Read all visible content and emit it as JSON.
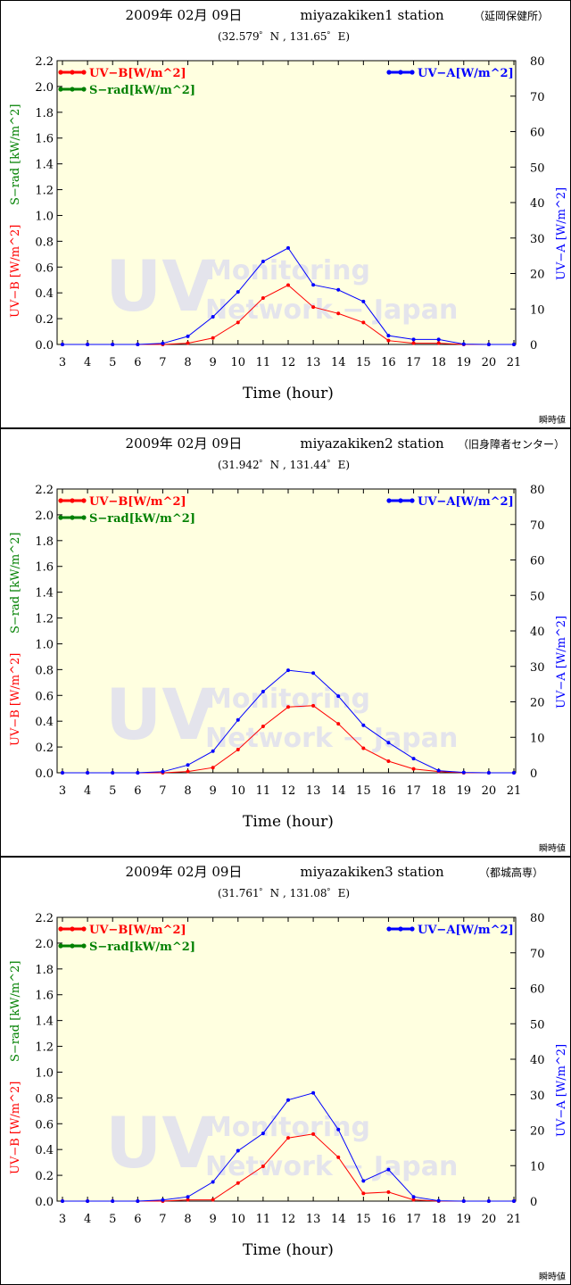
{
  "colors": {
    "uvb": "#ff0000",
    "srad": "#008000",
    "uva": "#0000ff",
    "plot_bg": "#ffffe0"
  },
  "common": {
    "date": "2009年 02月 09日",
    "xlabel": "Time (hour)",
    "ylabel_left_uvb": "UV−B [W/m^2]",
    "ylabel_left_srad": "S−rad [kW/m^2]",
    "ylabel_right": "UV−A [W/m^2]",
    "legend_uvb": "UV−B[W/m^2]",
    "legend_srad": "S−rad[kW/m^2]",
    "legend_uva": "UV−A[W/m^2]",
    "watermark_big": "UV",
    "watermark_line1": "Monitoring",
    "watermark_line2": "Network − Japan",
    "footnote": "瞬時値"
  },
  "chart_data": [
    {
      "type": "line",
      "station": "miyazakiken1 station",
      "place": "（延岡保健所）",
      "coords": "(32.579゜N , 131.65゜E)",
      "x": [
        3,
        4,
        5,
        6,
        7,
        8,
        9,
        10,
        11,
        12,
        13,
        14,
        15,
        16,
        17,
        18,
        19,
        20,
        21
      ],
      "xlim": [
        3,
        21
      ],
      "ylim_left": [
        0,
        2.2
      ],
      "ylim_right": [
        0,
        80
      ],
      "yticks_left": [
        "0.0",
        "0.2",
        "0.4",
        "0.6",
        "0.8",
        "1.0",
        "1.2",
        "1.4",
        "1.6",
        "1.8",
        "2.0",
        "2.2"
      ],
      "yticks_right": [
        "0",
        "10",
        "20",
        "30",
        "40",
        "50",
        "60",
        "70",
        "80"
      ],
      "series": [
        {
          "name": "UV−B[W/m^2]",
          "axis": "left",
          "values": [
            0,
            0,
            0,
            0,
            0,
            0.01,
            0.05,
            0.17,
            0.36,
            0.46,
            0.29,
            0.24,
            0.17,
            0.03,
            0.01,
            0.01,
            0,
            0,
            0
          ]
        },
        {
          "name": "UV−A[W/m^2]",
          "axis": "right",
          "values": [
            0,
            0,
            0,
            0,
            0.3,
            2.3,
            7.8,
            14.8,
            23.4,
            27.2,
            16.8,
            15.4,
            12.1,
            2.5,
            1.4,
            1.4,
            0.1,
            0,
            0
          ]
        }
      ]
    },
    {
      "type": "line",
      "station": "miyazakiken2 station",
      "place": "（旧身障者センター）",
      "coords": "(31.942゜N , 131.44゜E)",
      "x": [
        3,
        4,
        5,
        6,
        7,
        8,
        9,
        10,
        11,
        12,
        13,
        14,
        15,
        16,
        17,
        18,
        19,
        20,
        21
      ],
      "xlim": [
        3,
        21
      ],
      "ylim_left": [
        0,
        2.2
      ],
      "ylim_right": [
        0,
        80
      ],
      "yticks_left": [
        "0.0",
        "0.2",
        "0.4",
        "0.6",
        "0.8",
        "1.0",
        "1.2",
        "1.4",
        "1.6",
        "1.8",
        "2.0",
        "2.2"
      ],
      "yticks_right": [
        "0",
        "10",
        "20",
        "30",
        "40",
        "50",
        "60",
        "70",
        "80"
      ],
      "series": [
        {
          "name": "UV−B[W/m^2]",
          "axis": "left",
          "values": [
            0,
            0,
            0,
            0,
            0,
            0.01,
            0.04,
            0.18,
            0.36,
            0.51,
            0.52,
            0.38,
            0.19,
            0.09,
            0.03,
            0.01,
            0,
            0,
            0
          ]
        },
        {
          "name": "UV−A[W/m^2]",
          "axis": "right",
          "values": [
            0,
            0,
            0,
            0,
            0.3,
            2.2,
            6.1,
            14.9,
            22.9,
            28.9,
            28.1,
            21.6,
            13.4,
            8.5,
            4.0,
            0.6,
            0.1,
            0,
            0
          ]
        }
      ]
    },
    {
      "type": "line",
      "station": "miyazakiken3 station",
      "place": "（都城高専）",
      "coords": "(31.761゜N , 131.08゜E)",
      "x": [
        3,
        4,
        5,
        6,
        7,
        8,
        9,
        10,
        11,
        12,
        13,
        14,
        15,
        16,
        17,
        18,
        19,
        20,
        21
      ],
      "xlim": [
        3,
        21
      ],
      "ylim_left": [
        0,
        2.2
      ],
      "ylim_right": [
        0,
        80
      ],
      "yticks_left": [
        "0.0",
        "0.2",
        "0.4",
        "0.6",
        "0.8",
        "1.0",
        "1.2",
        "1.4",
        "1.6",
        "1.8",
        "2.0",
        "2.2"
      ],
      "yticks_right": [
        "0",
        "10",
        "20",
        "30",
        "40",
        "50",
        "60",
        "70",
        "80"
      ],
      "series": [
        {
          "name": "UV−B[W/m^2]",
          "axis": "left",
          "values": [
            0,
            0,
            0,
            0,
            0,
            0.01,
            0.01,
            0.14,
            0.27,
            0.49,
            0.52,
            0.34,
            0.06,
            0.07,
            0.01,
            0,
            0,
            0,
            0
          ]
        },
        {
          "name": "UV−A[W/m^2]",
          "axis": "right",
          "values": [
            0,
            0,
            0,
            0,
            0.3,
            1.2,
            5.4,
            14.2,
            19.1,
            28.5,
            30.5,
            20.2,
            5.7,
            8.9,
            1.2,
            0.1,
            0,
            0,
            0
          ]
        }
      ]
    }
  ]
}
